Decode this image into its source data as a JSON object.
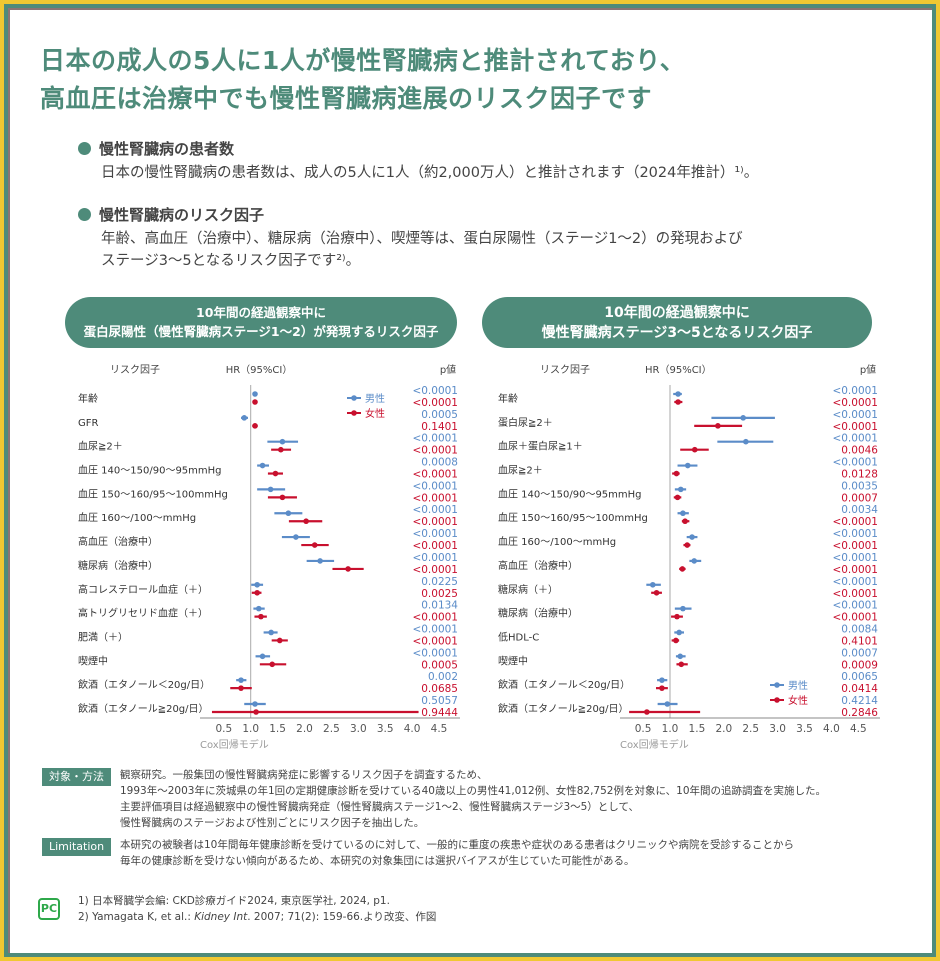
{
  "title": [
    "日本の成人の5人に1人が慢性腎臓病と推計されており、",
    "高血圧は治療中でも慢性腎臓病進展のリスク因子です"
  ],
  "bullets": [
    {
      "heading": "慢性腎臓病の患者数",
      "lines": [
        "日本の慢性腎臓病の患者数は、成人の5人に1人（約2,000万人）と推計されます（2024年推計）¹⁾。"
      ]
    },
    {
      "heading": "慢性腎臓病のリスク因子",
      "lines": [
        "年齢、高血圧（治療中）、糖尿病（治療中）、喫煙等は、蛋白尿陽性（ステージ1〜2）の発現および",
        "ステージ3〜5となるリスク因子です²⁾。"
      ]
    }
  ],
  "colors": {
    "accent": "#4e8b7a",
    "male": "#5b8cc8",
    "female": "#c8102e",
    "border": "#f0c832"
  },
  "chart_data": [
    {
      "type": "forest",
      "title": [
        "10年間の経過観察中に",
        "蛋白尿陽性（慢性腎臓病ステージ1〜2）が発現するリスク因子"
      ],
      "col_headers": {
        "factor": "リスク因子",
        "hr": "HR（95%CI）",
        "p": "p値"
      },
      "xlabel": "Cox回帰モデル",
      "xlim": [
        0.1,
        4.7
      ],
      "ticks": [
        "0.5",
        "1.0",
        "1.5",
        "2.0",
        "2.5",
        "3.0",
        "3.5",
        "4.0",
        "4.5"
      ],
      "reference": 1.0,
      "legend": {
        "placement": "top-right",
        "male": "男性",
        "female": "女性"
      },
      "rows": [
        {
          "factor": "年齢",
          "male": {
            "hr": 1.08,
            "ci": [
              1.05,
              1.12
            ],
            "p": "<0.0001"
          },
          "female": {
            "hr": 1.08,
            "ci": [
              1.04,
              1.12
            ],
            "p": "<0.0001"
          }
        },
        {
          "factor": "GFR",
          "male": {
            "hr": 0.88,
            "ci": [
              0.82,
              0.95
            ],
            "p": "0.0005"
          },
          "female": {
            "hr": 1.08,
            "ci": [
              1.03,
              1.13
            ],
            "p": "0.1401"
          }
        },
        {
          "factor": "血尿≧2＋",
          "male": {
            "hr": 1.59,
            "ci": [
              1.31,
              1.88
            ],
            "p": "<0.0001"
          },
          "female": {
            "hr": 1.56,
            "ci": [
              1.38,
              1.75
            ],
            "p": "<0.0001"
          }
        },
        {
          "factor": "血圧 140〜150/90〜95mmHg",
          "male": {
            "hr": 1.22,
            "ci": [
              1.12,
              1.34
            ],
            "p": "0.0008"
          },
          "female": {
            "hr": 1.46,
            "ci": [
              1.32,
              1.6
            ],
            "p": "<0.0001"
          }
        },
        {
          "factor": "血圧 150〜160/95〜100mmHg",
          "male": {
            "hr": 1.37,
            "ci": [
              1.12,
              1.64
            ],
            "p": "<0.0001"
          },
          "female": {
            "hr": 1.59,
            "ci": [
              1.32,
              1.86
            ],
            "p": "<0.0001"
          }
        },
        {
          "factor": "血圧 160〜/100〜mmHg",
          "male": {
            "hr": 1.7,
            "ci": [
              1.44,
              1.96
            ],
            "p": "<0.0001"
          },
          "female": {
            "hr": 2.03,
            "ci": [
              1.71,
              2.33
            ],
            "p": "<0.0001"
          }
        },
        {
          "factor": "高血圧（治療中）",
          "male": {
            "hr": 1.84,
            "ci": [
              1.58,
              2.1
            ],
            "p": "<0.0001"
          },
          "female": {
            "hr": 2.19,
            "ci": [
              1.94,
              2.45
            ],
            "p": "<0.0001"
          }
        },
        {
          "factor": "糖尿病（治療中）",
          "male": {
            "hr": 2.29,
            "ci": [
              2.04,
              2.55
            ],
            "p": "<0.0001"
          },
          "female": {
            "hr": 2.81,
            "ci": [
              2.52,
              3.1
            ],
            "p": "<0.0001"
          }
        },
        {
          "factor": "高コレステロール血症（＋）",
          "male": {
            "hr": 1.12,
            "ci": [
              1.01,
              1.23
            ],
            "p": "0.0225"
          },
          "female": {
            "hr": 1.12,
            "ci": [
              1.02,
              1.2
            ],
            "p": "0.0025"
          }
        },
        {
          "factor": "高トリグリセリド血症（＋）",
          "male": {
            "hr": 1.15,
            "ci": [
              1.05,
              1.26
            ],
            "p": "0.0134"
          },
          "female": {
            "hr": 1.19,
            "ci": [
              1.07,
              1.3
            ],
            "p": "<0.0001"
          }
        },
        {
          "factor": "肥満（＋）",
          "male": {
            "hr": 1.38,
            "ci": [
              1.24,
              1.5
            ],
            "p": "<0.0001"
          },
          "female": {
            "hr": 1.54,
            "ci": [
              1.39,
              1.69
            ],
            "p": "<0.0001"
          }
        },
        {
          "factor": "喫煙中",
          "male": {
            "hr": 1.22,
            "ci": [
              1.09,
              1.36
            ],
            "p": "<0.0001"
          },
          "female": {
            "hr": 1.4,
            "ci": [
              1.17,
              1.66
            ],
            "p": "0.0005"
          }
        },
        {
          "factor": "飲酒（エタノール＜20g/日）",
          "male": {
            "hr": 0.82,
            "ci": [
              0.73,
              0.92
            ],
            "p": "0.002"
          },
          "female": {
            "hr": 0.82,
            "ci": [
              0.62,
              1.02
            ],
            "p": "0.0685"
          }
        },
        {
          "factor": "飲酒（エタノール≧20g/日）",
          "male": {
            "hr": 1.08,
            "ci": [
              0.88,
              1.28
            ],
            "p": "0.5057"
          },
          "female": {
            "hr": 1.1,
            "ci": [
              0.28,
              4.12
            ],
            "p": "0.9444"
          }
        }
      ]
    },
    {
      "type": "forest",
      "title": [
        "10年間の経過観察中に",
        "慢性腎臓病ステージ3〜5となるリスク因子"
      ],
      "col_headers": {
        "factor": "リスク因子",
        "hr": "HR（95%CI）",
        "p": "p値"
      },
      "xlabel": "Cox回帰モデル",
      "xlim": [
        0.1,
        4.7
      ],
      "ticks": [
        "0.5",
        "1.0",
        "1.5",
        "2.0",
        "2.5",
        "3.0",
        "3.5",
        "4.0",
        "4.5"
      ],
      "reference": 1.0,
      "legend": {
        "placement": "bottom-right",
        "male": "男性",
        "female": "女性"
      },
      "rows": [
        {
          "factor": "年齢",
          "male": {
            "hr": 1.15,
            "ci": [
              1.06,
              1.22
            ],
            "p": "<0.0001"
          },
          "female": {
            "hr": 1.15,
            "ci": [
              1.08,
              1.23
            ],
            "p": "<0.0001"
          }
        },
        {
          "factor": "蛋白尿≧2＋",
          "male": {
            "hr": 2.36,
            "ci": [
              1.77,
              2.95
            ],
            "p": "<0.0001"
          },
          "female": {
            "hr": 1.89,
            "ci": [
              1.45,
              2.34
            ],
            "p": "<0.0001"
          }
        },
        {
          "factor": "血尿＋蛋白尿≧1＋",
          "male": {
            "hr": 2.41,
            "ci": [
              1.88,
              2.92
            ],
            "p": "<0.0001"
          },
          "female": {
            "hr": 1.46,
            "ci": [
              1.19,
              1.72
            ],
            "p": "0.0046"
          }
        },
        {
          "factor": "血尿≧2＋",
          "male": {
            "hr": 1.33,
            "ci": [
              1.14,
              1.51
            ],
            "p": "<0.0001"
          },
          "female": {
            "hr": 1.12,
            "ci": [
              1.04,
              1.18
            ],
            "p": "0.0128"
          }
        },
        {
          "factor": "血圧 140〜150/90〜95mmHg",
          "male": {
            "hr": 1.2,
            "ci": [
              1.09,
              1.3
            ],
            "p": "0.0035"
          },
          "female": {
            "hr": 1.14,
            "ci": [
              1.07,
              1.21
            ],
            "p": "0.0007"
          }
        },
        {
          "factor": "血圧 150〜160/95〜100mmHg",
          "male": {
            "hr": 1.24,
            "ci": [
              1.14,
              1.35
            ],
            "p": "0.0034"
          },
          "female": {
            "hr": 1.28,
            "ci": [
              1.22,
              1.36
            ],
            "p": "<0.0001"
          }
        },
        {
          "factor": "血圧 160〜/100〜mmHg",
          "male": {
            "hr": 1.41,
            "ci": [
              1.31,
              1.51
            ],
            "p": "<0.0001"
          },
          "female": {
            "hr": 1.32,
            "ci": [
              1.25,
              1.38
            ],
            "p": "<0.0001"
          }
        },
        {
          "factor": "高血圧（治療中）",
          "male": {
            "hr": 1.45,
            "ci": [
              1.36,
              1.58
            ],
            "p": "<0.0001"
          },
          "female": {
            "hr": 1.23,
            "ci": [
              1.17,
              1.29
            ],
            "p": "<0.0001"
          }
        },
        {
          "factor": "糖尿病（＋）",
          "male": {
            "hr": 0.68,
            "ci": [
              0.56,
              0.83
            ],
            "p": "<0.0001"
          },
          "female": {
            "hr": 0.75,
            "ci": [
              0.65,
              0.85
            ],
            "p": "<0.0001"
          }
        },
        {
          "factor": "糖尿病（治療中）",
          "male": {
            "hr": 1.24,
            "ci": [
              1.09,
              1.4
            ],
            "p": "<0.0001"
          },
          "female": {
            "hr": 1.13,
            "ci": [
              1.02,
              1.24
            ],
            "p": "<0.0001"
          }
        },
        {
          "factor": "低HDL-C",
          "male": {
            "hr": 1.17,
            "ci": [
              1.08,
              1.26
            ],
            "p": "0.0084"
          },
          "female": {
            "hr": 1.11,
            "ci": [
              1.03,
              1.17
            ],
            "p": "0.4101"
          }
        },
        {
          "factor": "喫煙中",
          "male": {
            "hr": 1.19,
            "ci": [
              1.11,
              1.29
            ],
            "p": "0.0007"
          },
          "female": {
            "hr": 1.21,
            "ci": [
              1.12,
              1.33
            ],
            "p": "0.0009"
          }
        },
        {
          "factor": "飲酒（エタノール＜20g/日）",
          "male": {
            "hr": 0.85,
            "ci": [
              0.76,
              0.95
            ],
            "p": "0.0065"
          },
          "female": {
            "hr": 0.85,
            "ci": [
              0.74,
              0.96
            ],
            "p": "0.0414"
          }
        },
        {
          "factor": "飲酒（エタノール≧20g/日）",
          "male": {
            "hr": 0.95,
            "ci": [
              0.77,
              1.14
            ],
            "p": "0.4214"
          },
          "female": {
            "hr": 0.57,
            "ci": [
              0.24,
              1.56
            ],
            "p": "0.2846"
          }
        }
      ]
    }
  ],
  "methods": {
    "label": "対象・方法",
    "lines": [
      "観察研究。一般集団の慢性腎臓病発症に影響するリスク因子を調査するため、",
      "1993年〜2003年に茨城県の年1回の定期健康診断を受けている40歳以上の男性41,012例、女性82,752例を対象に、10年間の追跡調査を実施した。",
      "主要評価項目は経過観察中の慢性腎臓病発症（慢性腎臓病ステージ1〜2、慢性腎臓病ステージ3〜5）として、",
      "慢性腎臓病のステージおよび性別ごとにリスク因子を抽出した。"
    ]
  },
  "limitation": {
    "label": "Limitation",
    "lines": [
      "本研究の被験者は10年間毎年健康診断を受けているのに対して、一般的に重度の疾患や症状のある患者はクリニックや病院を受診することから",
      "毎年の健康診断を受けない傾向があるため、本研究の対象集団には選択バイアスが生じていた可能性がある。"
    ]
  },
  "references": {
    "ref1": "1) 日本腎臓学会編: CKD診療ガイド2024, 東京医学社, 2024, p1.",
    "ref2_pre": "2) Yamagata K, et al.: ",
    "ref2_journal": "Kidney Int",
    "ref2_post": ". 2007; 71(2): 159-66.より改変、作図"
  },
  "logo": "PC"
}
